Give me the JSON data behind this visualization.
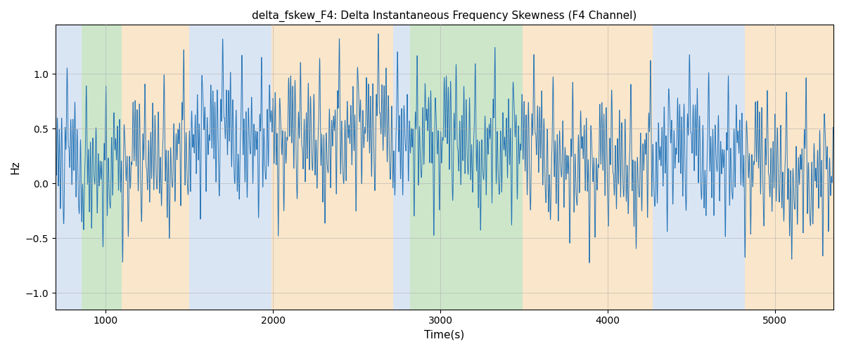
{
  "title": "delta_fskew_F4: Delta Instantaneous Frequency Skewness (F4 Channel)",
  "xlabel": "Time(s)",
  "ylabel": "Hz",
  "xlim": [
    700,
    5350
  ],
  "ylim": [
    -1.15,
    1.45
  ],
  "line_color": "#2775b6",
  "line_width": 0.7,
  "background_color": "#ffffff",
  "grid_color": "#aaaaaa",
  "bands": [
    {
      "xmin": 700,
      "xmax": 855,
      "color": "#aec6e8",
      "alpha": 0.45
    },
    {
      "xmin": 855,
      "xmax": 1095,
      "color": "#90c98a",
      "alpha": 0.45
    },
    {
      "xmin": 1095,
      "xmax": 1500,
      "color": "#f5c98a",
      "alpha": 0.45
    },
    {
      "xmin": 1500,
      "xmax": 1990,
      "color": "#aec6e8",
      "alpha": 0.45
    },
    {
      "xmin": 1990,
      "xmax": 2720,
      "color": "#f5c98a",
      "alpha": 0.45
    },
    {
      "xmin": 2720,
      "xmax": 2820,
      "color": "#aec6e8",
      "alpha": 0.45
    },
    {
      "xmin": 2820,
      "xmax": 3490,
      "color": "#90c98a",
      "alpha": 0.45
    },
    {
      "xmin": 3490,
      "xmax": 3700,
      "color": "#f5c98a",
      "alpha": 0.45
    },
    {
      "xmin": 3700,
      "xmax": 4270,
      "color": "#f5c98a",
      "alpha": 0.45
    },
    {
      "xmin": 4270,
      "xmax": 4820,
      "color": "#aec6e8",
      "alpha": 0.45
    },
    {
      "xmin": 4820,
      "xmax": 5350,
      "color": "#f5c98a",
      "alpha": 0.45
    }
  ],
  "yticks": [
    -1.0,
    -0.5,
    0.0,
    0.5,
    1.0
  ],
  "xticks": [
    1000,
    2000,
    3000,
    4000,
    5000
  ]
}
